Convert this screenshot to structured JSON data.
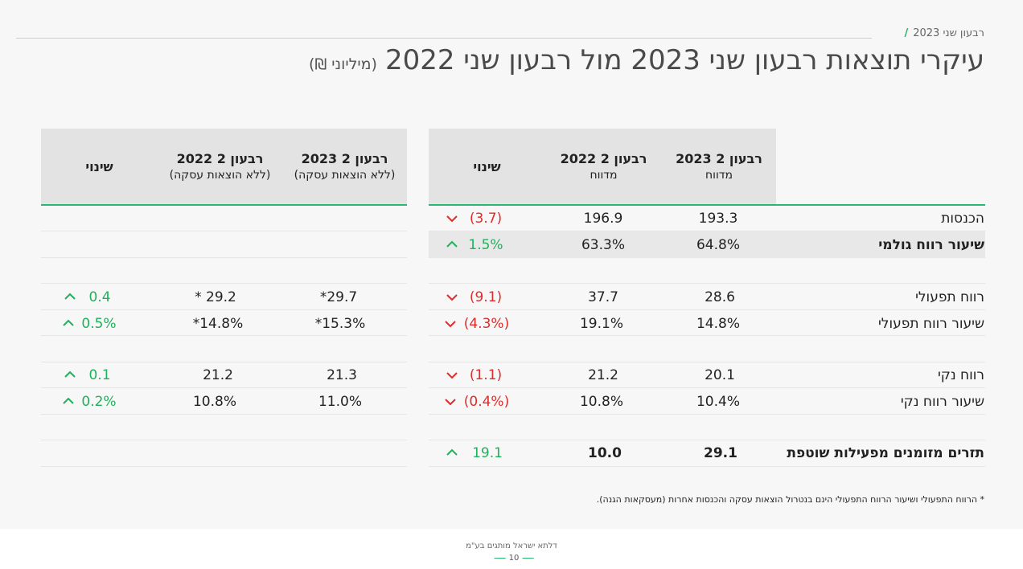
{
  "header": {
    "kicker": "רבעון שני 2023",
    "title": "עיקרי תוצאות רבעון שני 2023 מול רבעון שני 2022",
    "unit": "(מיליוני ₪)"
  },
  "reported_table": {
    "columns": [
      {
        "line1": "רבעון 2 2023",
        "line2": "מדווח"
      },
      {
        "line1": "רבעון 2 2022",
        "line2": "מדווח"
      },
      {
        "line1": "שינוי",
        "line2": ""
      }
    ],
    "rows": [
      {
        "label": "הכנסות",
        "q2_2023": "193.3",
        "q2_2022": "196.9",
        "change": "(3.7)",
        "direction": "down"
      },
      {
        "label": "שיעור רווח גולמי",
        "q2_2023": "64.8%",
        "q2_2022": "63.3%",
        "change": "1.5%",
        "direction": "up"
      },
      {
        "label": "רווח תפעולי",
        "q2_2023": "28.6",
        "q2_2022": "37.7",
        "change": "(9.1)",
        "direction": "down"
      },
      {
        "label": "שיעור רווח תפעולי",
        "q2_2023": "14.8%",
        "q2_2022": "19.1%",
        "change": "(4.3%)",
        "direction": "down"
      },
      {
        "label": "רווח נקי",
        "q2_2023": "20.1",
        "q2_2022": "21.2",
        "change": "(1.1)",
        "direction": "down"
      },
      {
        "label": "שיעור רווח נקי",
        "q2_2023": "10.4%",
        "q2_2022": "10.8%",
        "change": "(0.4%)",
        "direction": "down"
      },
      {
        "label": "תזרים מזומנים מפעילות שוטפת",
        "q2_2023": "29.1",
        "q2_2022": "10.0",
        "change": "19.1",
        "direction": "up"
      }
    ]
  },
  "adjusted_table": {
    "columns": [
      {
        "line1": "רבעון 2 2023",
        "line2": "(ללא הוצאות עסקה)"
      },
      {
        "line1": "רבעון 2 2022",
        "line2": "(ללא הוצאות עסקה)"
      },
      {
        "line1": "שינוי",
        "line2": ""
      }
    ],
    "rows": [
      {
        "q2_2023": "*29.7",
        "q2_2022": "* 29.2",
        "change": "0.4",
        "direction": "up"
      },
      {
        "q2_2023": "*15.3%",
        "q2_2022": "*14.8%",
        "change": "0.5%",
        "direction": "up"
      },
      {
        "q2_2023": "21.3",
        "q2_2022": "21.2",
        "change": "0.1",
        "direction": "up"
      },
      {
        "q2_2023": "11.0%",
        "q2_2022": "10.8%",
        "change": "0.2%",
        "direction": "up"
      }
    ]
  },
  "footnote": "* הרווח התפעולי ושיעור הרווח התפעולי הינם בנטרול הוצאות עסקה והכנסות אחרות (מעסקאות הגנה).",
  "footer": {
    "company": "דלתא ישראל מותגים בע\"מ",
    "page_number": "10"
  },
  "colors": {
    "accent_green": "#2bb673",
    "negative_red": "#e02b2b",
    "positive_green": "#1fb15b"
  }
}
